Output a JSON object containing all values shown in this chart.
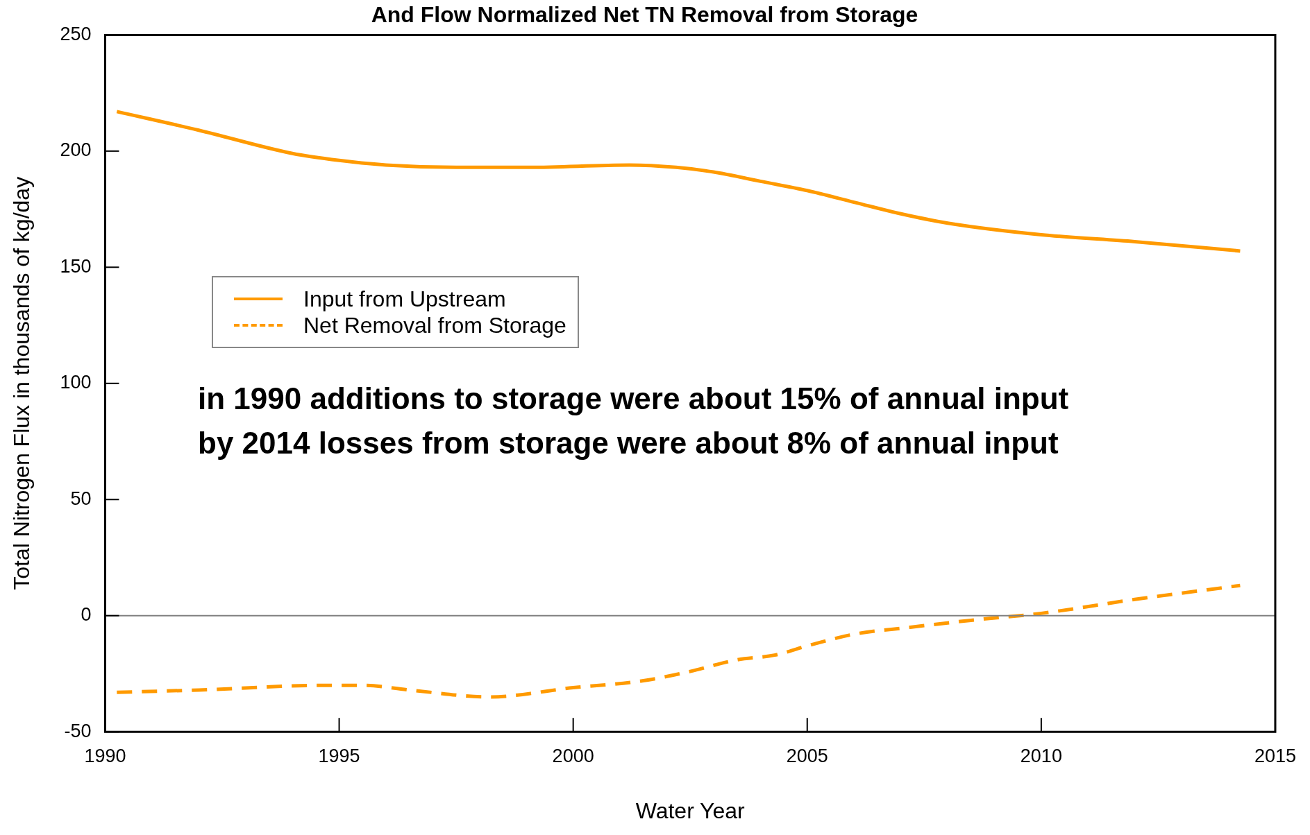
{
  "chart_data": {
    "type": "line",
    "title": "And Flow Normalized Net TN Removal from Storage",
    "xlabel": "Water Year",
    "ylabel": "Total Nitrogen Flux in thousands of kg/day",
    "xlim": [
      1990,
      2015
    ],
    "xticks": [
      1990,
      1995,
      2000,
      2005,
      2010,
      2015
    ],
    "ylim": [
      -50,
      250
    ],
    "yticks": [
      -50,
      0,
      50,
      100,
      150,
      200,
      250
    ],
    "grid": false,
    "legend": "top left",
    "marker": "none",
    "ref_lines": [
      {
        "axis": "y",
        "value": 0,
        "color": "#808080"
      }
    ],
    "annotations": [
      "in 1990 additions to storage were about 15% of annual input",
      "by 2014 losses from storage were about 8% of annual input"
    ],
    "series": [
      {
        "name": "Input from Upstream",
        "color": "#ff9a00",
        "line_style": "solid",
        "x": [
          1990.25,
          1992,
          1994,
          1995,
          1996,
          1997.5,
          1999,
          2001.2,
          2002.2,
          2003,
          2004,
          2005,
          2006,
          2007,
          2008,
          2010,
          2012,
          2014.25
        ],
        "values": [
          217,
          209,
          199,
          196,
          194,
          193,
          193,
          194,
          193,
          191,
          187,
          183,
          178,
          173,
          169,
          164,
          161,
          157
        ]
      },
      {
        "name": "Net Removal from Storage",
        "color": "#ff9a00",
        "line_style": "dashed",
        "x": [
          1990.25,
          1992,
          1994.7,
          1995.5,
          1996.5,
          1998.2,
          2000,
          2001.5,
          2002.5,
          2003.5,
          2004.3,
          2005,
          2006,
          2007.2,
          2008.5,
          2010,
          2012,
          2014.25
        ],
        "values": [
          -33,
          -32,
          -30,
          -30,
          -32,
          -35,
          -31,
          -28,
          -24,
          -19,
          -17,
          -13,
          -8,
          -5,
          -2,
          1,
          7,
          13
        ]
      }
    ]
  }
}
